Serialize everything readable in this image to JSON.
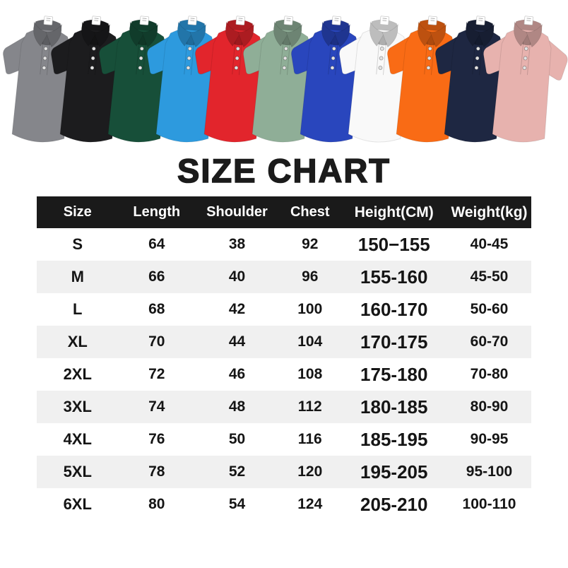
{
  "title": "SIZE CHART",
  "shirts": [
    {
      "name": "gray",
      "color": "#85868b"
    },
    {
      "name": "black",
      "color": "#1c1c1e"
    },
    {
      "name": "dark-green",
      "color": "#174f39"
    },
    {
      "name": "sky-blue",
      "color": "#2d9ade"
    },
    {
      "name": "red",
      "color": "#e2252c"
    },
    {
      "name": "sage-green",
      "color": "#8fae97"
    },
    {
      "name": "royal-blue",
      "color": "#2946bd"
    },
    {
      "name": "white",
      "color": "#f9f9f9"
    },
    {
      "name": "orange",
      "color": "#f96b15"
    },
    {
      "name": "navy",
      "color": "#1e2742"
    },
    {
      "name": "pink",
      "color": "#e7b2ae"
    }
  ],
  "size_chart": {
    "columns": [
      "Size",
      "Length",
      "Shoulder",
      "Chest",
      "Height(CM)",
      "Weight(kg)"
    ],
    "rows": [
      {
        "size": "S",
        "length": "64",
        "shoulder": "38",
        "chest": "92",
        "height": "150−155",
        "weight": "40-45"
      },
      {
        "size": "M",
        "length": "66",
        "shoulder": "40",
        "chest": "96",
        "height": "155-160",
        "weight": "45-50"
      },
      {
        "size": "L",
        "length": "68",
        "shoulder": "42",
        "chest": "100",
        "height": "160-170",
        "weight": "50-60"
      },
      {
        "size": "XL",
        "length": "70",
        "shoulder": "44",
        "chest": "104",
        "height": "170-175",
        "weight": "60-70"
      },
      {
        "size": "2XL",
        "length": "72",
        "shoulder": "46",
        "chest": "108",
        "height": "175-180",
        "weight": "70-80"
      },
      {
        "size": "3XL",
        "length": "74",
        "shoulder": "48",
        "chest": "112",
        "height": "180-185",
        "weight": "80-90"
      },
      {
        "size": "4XL",
        "length": "76",
        "shoulder": "50",
        "chest": "116",
        "height": "185-195",
        "weight": "90-95"
      },
      {
        "size": "5XL",
        "length": "78",
        "shoulder": "52",
        "chest": "120",
        "height": "195-205",
        "weight": "95-100"
      },
      {
        "size": "6XL",
        "length": "80",
        "shoulder": "54",
        "chest": "124",
        "height": "205-210",
        "weight": "100-110"
      }
    ]
  },
  "theme": {
    "header_bg": "#1a1a1a",
    "row_alt": "#f0f0f0",
    "text": "#111111",
    "page_bg": "#ffffff"
  }
}
